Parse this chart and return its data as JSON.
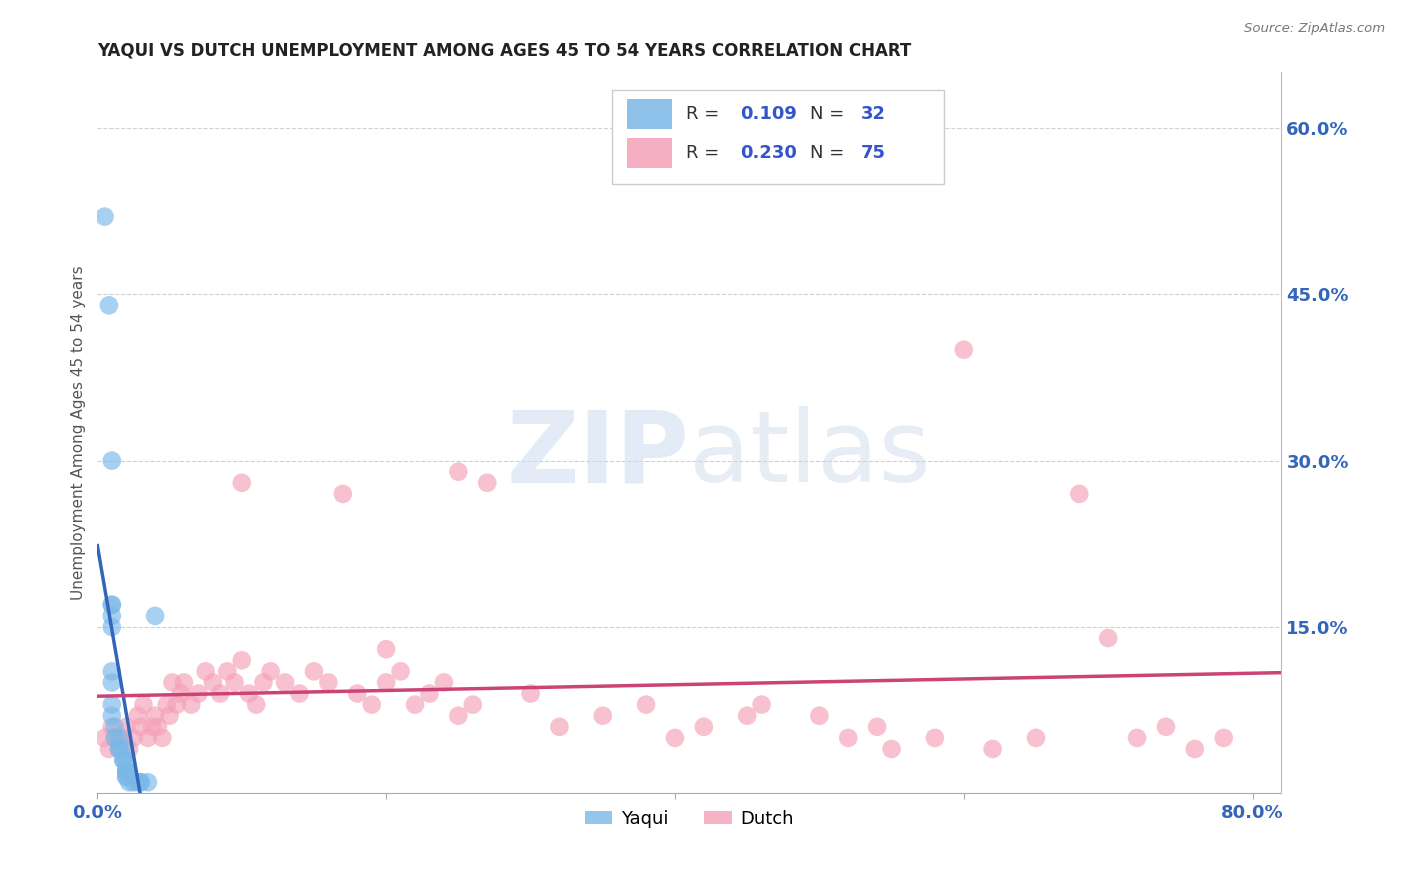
{
  "title": "YAQUI VS DUTCH UNEMPLOYMENT AMONG AGES 45 TO 54 YEARS CORRELATION CHART",
  "source": "Source: ZipAtlas.com",
  "ylabel": "Unemployment Among Ages 45 to 54 years",
  "xlim": [
    0.0,
    0.82
  ],
  "ylim": [
    0.0,
    0.65
  ],
  "yaqui_color": "#7ab8e8",
  "yaqui_line_color": "#3366bb",
  "dutch_color": "#f4a0b8",
  "dutch_line_color": "#cc4477",
  "yaqui_R": 0.109,
  "yaqui_N": 32,
  "dutch_R": 0.23,
  "dutch_N": 75,
  "watermark_zip": "ZIP",
  "watermark_atlas": "atlas",
  "background_color": "#ffffff",
  "grid_color": "#d0d0d0",
  "yaqui_scatter_x": [
    0.005,
    0.008,
    0.01,
    0.01,
    0.01,
    0.01,
    0.01,
    0.01,
    0.01,
    0.01,
    0.01,
    0.012,
    0.012,
    0.015,
    0.015,
    0.015,
    0.018,
    0.018,
    0.018,
    0.02,
    0.02,
    0.02,
    0.02,
    0.02,
    0.02,
    0.022,
    0.025,
    0.028,
    0.03,
    0.03,
    0.035,
    0.04
  ],
  "yaqui_scatter_y": [
    0.52,
    0.44,
    0.3,
    0.17,
    0.17,
    0.16,
    0.15,
    0.11,
    0.1,
    0.08,
    0.07,
    0.06,
    0.05,
    0.05,
    0.04,
    0.04,
    0.04,
    0.03,
    0.03,
    0.03,
    0.02,
    0.02,
    0.02,
    0.015,
    0.015,
    0.01,
    0.01,
    0.01,
    0.01,
    0.01,
    0.01,
    0.16
  ],
  "dutch_scatter_x": [
    0.005,
    0.008,
    0.01,
    0.012,
    0.015,
    0.018,
    0.02,
    0.022,
    0.025,
    0.028,
    0.03,
    0.032,
    0.035,
    0.038,
    0.04,
    0.042,
    0.045,
    0.048,
    0.05,
    0.052,
    0.055,
    0.058,
    0.06,
    0.065,
    0.07,
    0.075,
    0.08,
    0.085,
    0.09,
    0.095,
    0.1,
    0.105,
    0.11,
    0.115,
    0.12,
    0.13,
    0.14,
    0.15,
    0.16,
    0.17,
    0.18,
    0.19,
    0.2,
    0.21,
    0.22,
    0.23,
    0.24,
    0.25,
    0.26,
    0.27,
    0.3,
    0.32,
    0.35,
    0.38,
    0.4,
    0.42,
    0.45,
    0.46,
    0.5,
    0.52,
    0.54,
    0.55,
    0.58,
    0.6,
    0.62,
    0.65,
    0.68,
    0.7,
    0.72,
    0.74,
    0.76,
    0.78,
    0.25,
    0.1,
    0.2
  ],
  "dutch_scatter_y": [
    0.05,
    0.04,
    0.06,
    0.05,
    0.04,
    0.05,
    0.06,
    0.04,
    0.05,
    0.07,
    0.06,
    0.08,
    0.05,
    0.06,
    0.07,
    0.06,
    0.05,
    0.08,
    0.07,
    0.1,
    0.08,
    0.09,
    0.1,
    0.08,
    0.09,
    0.11,
    0.1,
    0.09,
    0.11,
    0.1,
    0.28,
    0.09,
    0.08,
    0.1,
    0.11,
    0.1,
    0.09,
    0.11,
    0.1,
    0.27,
    0.09,
    0.08,
    0.1,
    0.11,
    0.08,
    0.09,
    0.1,
    0.07,
    0.08,
    0.28,
    0.09,
    0.06,
    0.07,
    0.08,
    0.05,
    0.06,
    0.07,
    0.08,
    0.07,
    0.05,
    0.06,
    0.04,
    0.05,
    0.4,
    0.04,
    0.05,
    0.27,
    0.14,
    0.05,
    0.06,
    0.04,
    0.05,
    0.29,
    0.12,
    0.13
  ],
  "legend_text_color": "#3355cc",
  "legend_R_color": "#333333",
  "axis_tick_color": "#3366bb"
}
